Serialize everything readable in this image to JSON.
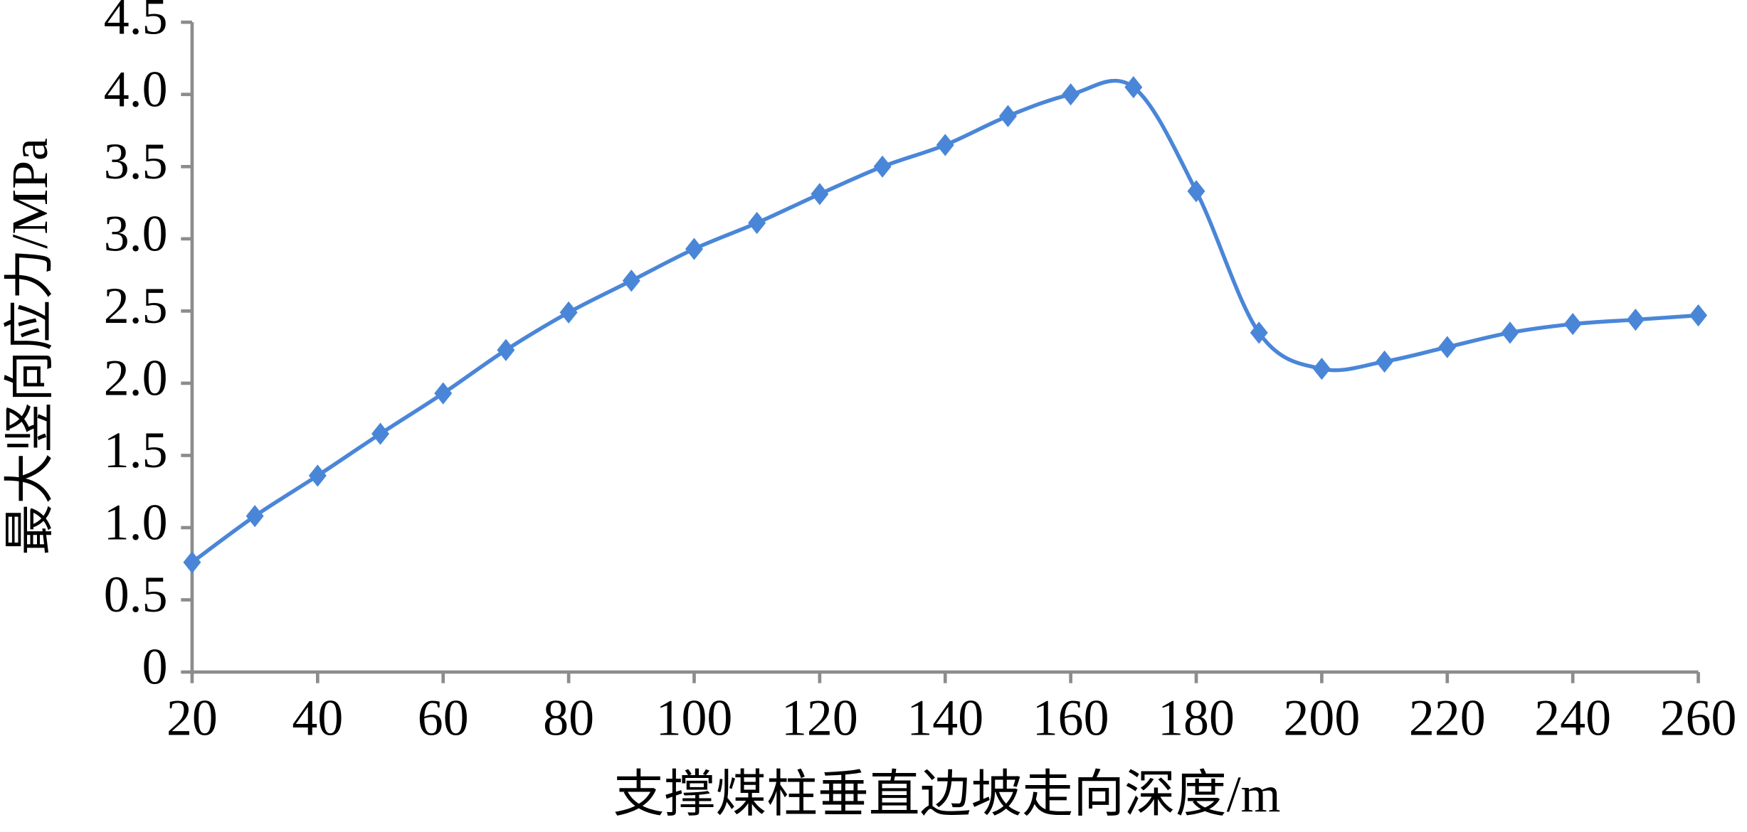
{
  "chart_data": {
    "type": "line",
    "x_label": "支撑煤柱垂直边坡走向深度/m",
    "y_label": "最大竖向应力/MPa",
    "x": [
      20,
      30,
      40,
      50,
      60,
      70,
      80,
      90,
      100,
      110,
      120,
      130,
      140,
      150,
      160,
      170,
      180,
      190,
      200,
      210,
      220,
      230,
      240,
      250,
      260
    ],
    "series": [
      {
        "color": "#4a86d8",
        "values": [
          0.76,
          1.08,
          1.36,
          1.65,
          1.93,
          2.23,
          2.49,
          2.71,
          2.93,
          3.11,
          3.31,
          3.5,
          3.65,
          3.85,
          4.0,
          4.05,
          3.33,
          2.35,
          2.1,
          2.15,
          2.25,
          2.35,
          2.41,
          2.44,
          2.47
        ]
      }
    ],
    "xlim": [
      20,
      260
    ],
    "xticks": [
      20,
      40,
      60,
      80,
      100,
      120,
      140,
      160,
      180,
      200,
      220,
      240,
      260
    ],
    "ylim": [
      0,
      4.5
    ],
    "yticks": [
      0,
      0.5,
      {
        "value": 1,
        "label": "1.0"
      },
      1.5,
      {
        "value": 2,
        "label": "2.0"
      },
      2.5,
      {
        "value": 3,
        "label": "3.0"
      },
      3.5,
      {
        "value": 4,
        "label": "4.0"
      },
      4.5
    ],
    "smooth": true,
    "marker": "diamond",
    "axis_color": "#8c8c8c"
  }
}
